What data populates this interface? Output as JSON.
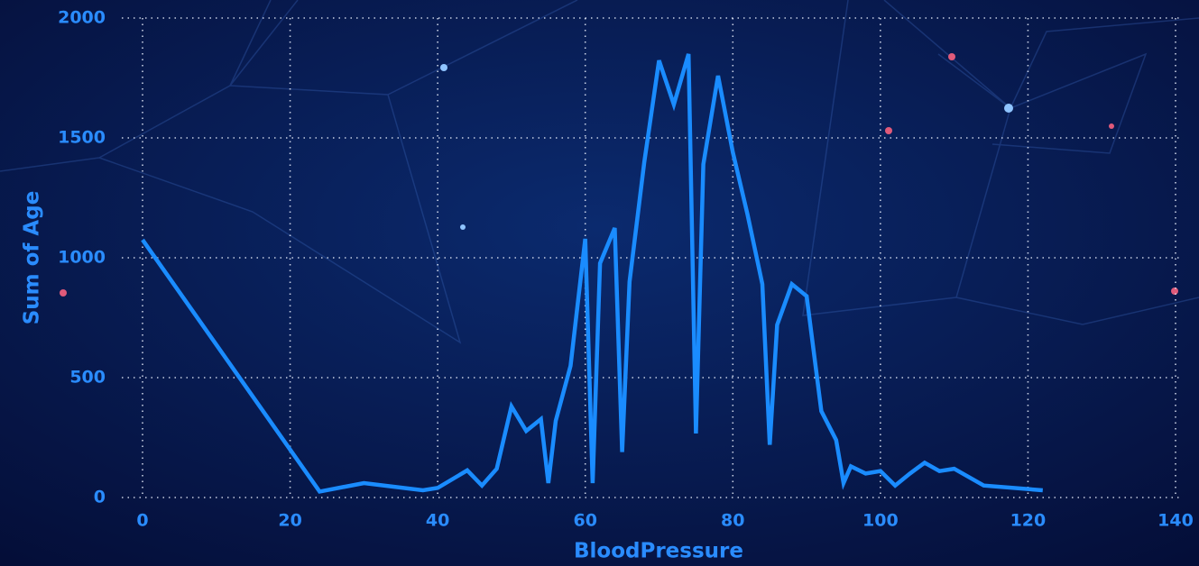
{
  "chart_data": {
    "type": "line",
    "x_label": "BloodPressure",
    "y_label": "Sum of Age",
    "color": "#1a8cff",
    "x": [
      0,
      24,
      30,
      38,
      40,
      44,
      46,
      48,
      50,
      52,
      54,
      55,
      56,
      58,
      60,
      61,
      62,
      64,
      65,
      66,
      68,
      70,
      72,
      74,
      75,
      76,
      78,
      80,
      82,
      84,
      85,
      86,
      88,
      90,
      92,
      94,
      95,
      96,
      98,
      100,
      102,
      104,
      106,
      108,
      110,
      114,
      122
    ],
    "values": [
      1075,
      25,
      60,
      30,
      40,
      113,
      50,
      120,
      380,
      278,
      327,
      60,
      320,
      549,
      1079,
      60,
      977,
      1124,
      190,
      900,
      1398,
      1823,
      1639,
      1850,
      267,
      1390,
      1759,
      1440,
      1180,
      890,
      220,
      720,
      890,
      840,
      360,
      240,
      60,
      130,
      100,
      110,
      50,
      100,
      145,
      110,
      120,
      50,
      30
    ],
    "xlim": [
      0,
      140
    ],
    "ylim": [
      0,
      2000
    ],
    "xticks": [
      0,
      20,
      40,
      60,
      80,
      100,
      120,
      140
    ],
    "yticks": [
      0,
      500,
      1000,
      1500,
      2000
    ],
    "grid": true
  }
}
